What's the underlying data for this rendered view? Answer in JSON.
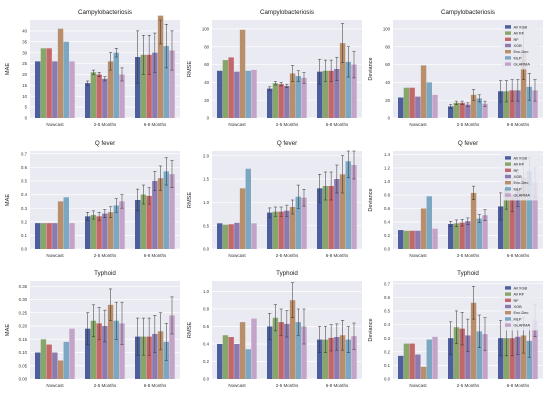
{
  "figure": {
    "legend_entries": [
      "All XGB",
      "All RF",
      "RF",
      "XGB",
      "Enc-Dec",
      "MLP",
      "GLARMA"
    ],
    "series_colors": [
      "#4c5e9c",
      "#86a66a",
      "#c2676a",
      "#8d7bb0",
      "#b88f6a",
      "#7aa7c2",
      "#c4a3c8"
    ],
    "error_bar_color": "#333333"
  },
  "chart_data": [
    {
      "type": "bar",
      "title": "Campylobacteriosis",
      "ylabel": "MAE",
      "categories": [
        "Nowcast",
        "2-5 Months",
        "6-8 Months"
      ],
      "ylim": [
        0,
        45
      ],
      "yticks": [
        "0",
        "5",
        "10",
        "15",
        "20",
        "25",
        "30",
        "35",
        "40"
      ],
      "ytick_values": [
        0,
        5,
        10,
        15,
        20,
        25,
        30,
        35,
        40
      ],
      "grid": true,
      "legend": "none",
      "series": [
        {
          "values": [
            26,
            16,
            28
          ],
          "err": [
            0,
            1,
            12
          ]
        },
        {
          "values": [
            32,
            21,
            29
          ],
          "err": [
            0,
            1,
            9
          ]
        },
        {
          "values": [
            32,
            20,
            29
          ],
          "err": [
            0,
            1,
            9
          ]
        },
        {
          "values": [
            26,
            18,
            30
          ],
          "err": [
            0,
            1,
            9
          ]
        },
        {
          "values": [
            41,
            26,
            47
          ],
          "err": [
            0,
            4,
            13
          ]
        },
        {
          "values": [
            35,
            30,
            33
          ],
          "err": [
            0,
            2,
            10
          ]
        },
        {
          "values": [
            26,
            20,
            31
          ],
          "err": [
            0,
            3,
            9
          ]
        }
      ]
    },
    {
      "type": "bar",
      "title": "Campylobacteriosis",
      "ylabel": "RMSE",
      "categories": [
        "Nowcast",
        "2-5 Months",
        "6-8 Months"
      ],
      "ylim": [
        0,
        110
      ],
      "yticks": [
        "0",
        "20",
        "40",
        "60",
        "80",
        "100"
      ],
      "ytick_values": [
        0,
        20,
        40,
        60,
        80,
        100
      ],
      "grid": true,
      "legend": "none",
      "series": [
        {
          "values": [
            53,
            33,
            52
          ],
          "err": [
            0,
            2,
            14
          ]
        },
        {
          "values": [
            65,
            39,
            53
          ],
          "err": [
            0,
            2,
            12
          ]
        },
        {
          "values": [
            68,
            38,
            53
          ],
          "err": [
            0,
            2,
            12
          ]
        },
        {
          "values": [
            52,
            36,
            55
          ],
          "err": [
            0,
            2,
            13
          ]
        },
        {
          "values": [
            99,
            50,
            84
          ],
          "err": [
            0,
            9,
            22
          ]
        },
        {
          "values": [
            53,
            47,
            63
          ],
          "err": [
            0,
            6,
            17
          ]
        },
        {
          "values": [
            54,
            45,
            60
          ],
          "err": [
            0,
            6,
            15
          ]
        }
      ]
    },
    {
      "type": "bar",
      "title": "Campylobacteriosis",
      "ylabel": "Deviance",
      "categories": [
        "Nowcast",
        "2-5 Months",
        "6-8 Months"
      ],
      "ylim": [
        0,
        110
      ],
      "yticks": [
        "0",
        "20",
        "40",
        "60",
        "80",
        "100"
      ],
      "ytick_values": [
        0,
        20,
        40,
        60,
        80,
        100
      ],
      "grid": true,
      "legend": "top-right",
      "series": [
        {
          "name": "All XGB",
          "values": [
            23,
            13,
            30
          ],
          "err": [
            0,
            2,
            12
          ]
        },
        {
          "name": "All RF",
          "values": [
            34,
            17,
            30
          ],
          "err": [
            0,
            2,
            12
          ]
        },
        {
          "name": "RF",
          "values": [
            34,
            17,
            31
          ],
          "err": [
            0,
            2,
            12
          ]
        },
        {
          "name": "XGB",
          "values": [
            24,
            15,
            31
          ],
          "err": [
            0,
            2,
            12
          ]
        },
        {
          "name": "Enc-Dec",
          "values": [
            59,
            26,
            73
          ],
          "err": [
            0,
            6,
            30
          ]
        },
        {
          "name": "MLP",
          "values": [
            40,
            22,
            35
          ],
          "err": [
            0,
            4,
            15
          ]
        },
        {
          "name": "GLARMA",
          "values": [
            26,
            16,
            31
          ],
          "err": [
            0,
            3,
            12
          ]
        }
      ]
    },
    {
      "type": "bar",
      "title": "Q fever",
      "ylabel": "MAE",
      "categories": [
        "Nowcast",
        "2-5 Months",
        "6-8 Months"
      ],
      "ylim": [
        0,
        0.72
      ],
      "yticks": [
        "0.0",
        "0.1",
        "0.2",
        "0.3",
        "0.4",
        "0.5",
        "0.6",
        "0.7"
      ],
      "ytick_values": [
        0,
        0.1,
        0.2,
        0.3,
        0.4,
        0.5,
        0.6,
        0.7
      ],
      "grid": true,
      "legend": "none",
      "series": [
        {
          "values": [
            0.19,
            0.24,
            0.36
          ],
          "err": [
            0,
            0.03,
            0.08
          ]
        },
        {
          "values": [
            0.19,
            0.25,
            0.4
          ],
          "err": [
            0,
            0.03,
            0.07
          ]
        },
        {
          "values": [
            0.19,
            0.24,
            0.39
          ],
          "err": [
            0,
            0.03,
            0.06
          ]
        },
        {
          "values": [
            0.19,
            0.26,
            0.5
          ],
          "err": [
            0,
            0.03,
            0.07
          ]
        },
        {
          "values": [
            0.35,
            0.27,
            0.52
          ],
          "err": [
            0,
            0.04,
            0.09
          ]
        },
        {
          "values": [
            0.38,
            0.32,
            0.57
          ],
          "err": [
            0,
            0.05,
            0.1
          ]
        },
        {
          "values": [
            0.19,
            0.35,
            0.55
          ],
          "err": [
            0,
            0.05,
            0.1
          ]
        }
      ]
    },
    {
      "type": "bar",
      "title": "Q fever",
      "ylabel": "RMSE",
      "categories": [
        "Nowcast",
        "2-5 Months",
        "6-8 Months"
      ],
      "ylim": [
        0,
        2.1
      ],
      "yticks": [
        "0.0",
        "0.5",
        "1.0",
        "1.5",
        "2.0"
      ],
      "ytick_values": [
        0,
        0.5,
        1.0,
        1.5,
        2.0
      ],
      "grid": true,
      "legend": "none",
      "series": [
        {
          "values": [
            0.55,
            0.78,
            1.3
          ],
          "err": [
            0,
            0.1,
            0.3
          ]
        },
        {
          "values": [
            0.52,
            0.8,
            1.35
          ],
          "err": [
            0,
            0.1,
            0.3
          ]
        },
        {
          "values": [
            0.53,
            0.8,
            1.35
          ],
          "err": [
            0,
            0.1,
            0.3
          ]
        },
        {
          "values": [
            0.56,
            0.82,
            1.5
          ],
          "err": [
            0,
            0.12,
            0.3
          ]
        },
        {
          "values": [
            1.3,
            0.9,
            1.6
          ],
          "err": [
            0,
            0.15,
            0.4
          ]
        },
        {
          "values": [
            1.72,
            1.12,
            1.88
          ],
          "err": [
            0,
            0.25,
            0.35
          ]
        },
        {
          "values": [
            0.55,
            1.1,
            1.8
          ],
          "err": [
            0,
            0.18,
            0.3
          ]
        }
      ]
    },
    {
      "type": "bar",
      "title": "Q fever",
      "ylabel": "Deviance",
      "categories": [
        "Nowcast",
        "2-5 Months",
        "6-8 Months"
      ],
      "ylim": [
        0,
        1.45
      ],
      "yticks": [
        "0.0",
        "0.2",
        "0.4",
        "0.6",
        "0.8",
        "1.0",
        "1.2",
        "1.4"
      ],
      "ytick_values": [
        0,
        0.2,
        0.4,
        0.6,
        0.8,
        1.0,
        1.2,
        1.4
      ],
      "grid": true,
      "legend": "top-right",
      "series": [
        {
          "name": "All XGB",
          "values": [
            0.28,
            0.37,
            0.63
          ],
          "err": [
            0,
            0.04,
            0.2
          ]
        },
        {
          "name": "All RF",
          "values": [
            0.27,
            0.38,
            0.89
          ],
          "err": [
            0,
            0.05,
            0.3
          ]
        },
        {
          "name": "RF",
          "values": [
            0.27,
            0.39,
            0.8
          ],
          "err": [
            0,
            0.05,
            0.25
          ]
        },
        {
          "name": "XGB",
          "values": [
            0.27,
            0.41,
            0.88
          ],
          "err": [
            0,
            0.05,
            0.25
          ]
        },
        {
          "name": "Enc-Dec",
          "values": [
            0.6,
            0.83,
            1.05
          ],
          "err": [
            0,
            0.1,
            0.25
          ]
        },
        {
          "name": "MLP",
          "values": [
            0.78,
            0.45,
            1.15
          ],
          "err": [
            0,
            0.06,
            0.2
          ]
        },
        {
          "name": "GLARMA",
          "values": [
            0.3,
            0.5,
            0.98
          ],
          "err": [
            0,
            0.08,
            0.22
          ]
        }
      ]
    },
    {
      "type": "bar",
      "title": "Typhoid",
      "ylabel": "MAE",
      "categories": [
        "Nowcast",
        "2-5 Months",
        "6-8 Months"
      ],
      "ylim": [
        0,
        0.37
      ],
      "yticks": [
        "0.00",
        "0.05",
        "0.10",
        "0.15",
        "0.20",
        "0.25",
        "0.30",
        "0.35"
      ],
      "ytick_values": [
        0,
        0.05,
        0.1,
        0.15,
        0.2,
        0.25,
        0.3,
        0.35
      ],
      "grid": true,
      "legend": "none",
      "series": [
        {
          "values": [
            0.1,
            0.19,
            0.16
          ],
          "err": [
            0,
            0.06,
            0.07
          ]
        },
        {
          "values": [
            0.15,
            0.22,
            0.16
          ],
          "err": [
            0,
            0.06,
            0.07
          ]
        },
        {
          "values": [
            0.13,
            0.21,
            0.16
          ],
          "err": [
            0,
            0.06,
            0.07
          ]
        },
        {
          "values": [
            0.1,
            0.2,
            0.17
          ],
          "err": [
            0,
            0.06,
            0.07
          ]
        },
        {
          "values": [
            0.07,
            0.28,
            0.18
          ],
          "err": [
            0,
            0.06,
            0.07
          ]
        },
        {
          "values": [
            0.14,
            0.22,
            0.14
          ],
          "err": [
            0,
            0.07,
            0.07
          ]
        },
        {
          "values": [
            0.19,
            0.21,
            0.24
          ],
          "err": [
            0,
            0.08,
            0.07
          ]
        }
      ]
    },
    {
      "type": "bar",
      "title": "Typhoid",
      "ylabel": "RMSE",
      "categories": [
        "Nowcast",
        "2-5 Months",
        "6-8 Months"
      ],
      "ylim": [
        0,
        1.12
      ],
      "yticks": [
        "0.0",
        "0.2",
        "0.4",
        "0.6",
        "0.8",
        "1.0"
      ],
      "ytick_values": [
        0,
        0.2,
        0.4,
        0.6,
        0.8,
        1.0
      ],
      "grid": true,
      "legend": "none",
      "series": [
        {
          "values": [
            0.4,
            0.6,
            0.45
          ],
          "err": [
            0,
            0.15,
            0.15
          ]
        },
        {
          "values": [
            0.5,
            0.7,
            0.45
          ],
          "err": [
            0,
            0.15,
            0.15
          ]
        },
        {
          "values": [
            0.48,
            0.65,
            0.47
          ],
          "err": [
            0,
            0.15,
            0.15
          ]
        },
        {
          "values": [
            0.4,
            0.63,
            0.48
          ],
          "err": [
            0,
            0.15,
            0.15
          ]
        },
        {
          "values": [
            0.65,
            0.9,
            0.5
          ],
          "err": [
            0,
            0.2,
            0.17
          ]
        },
        {
          "values": [
            0.34,
            0.65,
            0.45
          ],
          "err": [
            0,
            0.15,
            0.15
          ]
        },
        {
          "values": [
            0.69,
            0.6,
            0.49
          ],
          "err": [
            0,
            0.2,
            0.15
          ]
        }
      ]
    },
    {
      "type": "bar",
      "title": "Typhoid",
      "ylabel": "Deviance",
      "categories": [
        "Nowcast",
        "2-5 Months",
        "6-8 Months"
      ],
      "ylim": [
        0,
        0.72
      ],
      "yticks": [
        "0.0",
        "0.1",
        "0.2",
        "0.3",
        "0.4",
        "0.5",
        "0.6",
        "0.7"
      ],
      "ytick_values": [
        0,
        0.1,
        0.2,
        0.3,
        0.4,
        0.5,
        0.6,
        0.7
      ],
      "grid": true,
      "legend": "top-right",
      "series": [
        {
          "name": "All XGB",
          "values": [
            0.17,
            0.3,
            0.3
          ],
          "err": [
            0,
            0.12,
            0.13
          ]
        },
        {
          "name": "All RF",
          "values": [
            0.26,
            0.38,
            0.3
          ],
          "err": [
            0,
            0.12,
            0.13
          ]
        },
        {
          "name": "RF",
          "values": [
            0.26,
            0.37,
            0.3
          ],
          "err": [
            0,
            0.12,
            0.13
          ]
        },
        {
          "name": "XGB",
          "values": [
            0.18,
            0.32,
            0.31
          ],
          "err": [
            0,
            0.12,
            0.13
          ]
        },
        {
          "name": "Enc-Dec",
          "values": [
            0.09,
            0.56,
            0.32
          ],
          "err": [
            0,
            0.12,
            0.13
          ]
        },
        {
          "name": "MLP",
          "values": [
            0.29,
            0.35,
            0.28
          ],
          "err": [
            0,
            0.12,
            0.12
          ]
        },
        {
          "name": "GLARMA",
          "values": [
            0.31,
            0.33,
            0.43
          ],
          "err": [
            0,
            0.12,
            0.12
          ]
        }
      ]
    }
  ]
}
